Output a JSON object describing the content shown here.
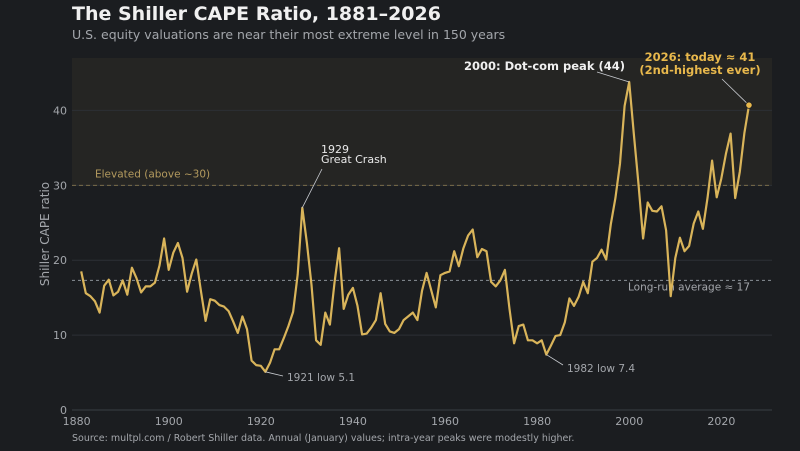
{
  "title": "The Shiller CAPE Ratio, 1881–2026",
  "subtitle": "U.S. equity valuations are near their most extreme level in 150 years",
  "source": "Source: multpl.com / Robert Shiller data. Annual (January) values; intra-year peaks were modestly higher.",
  "colors": {
    "background": "#1b1d20",
    "line": "#d9b45a",
    "elevated_band": "#252523",
    "grid": "#2c3035",
    "text_muted": "#a3a6ab",
    "accent_label": "#e8b84c"
  },
  "chart_data": {
    "type": "line",
    "xlabel": "",
    "ylabel": "Shiller CAPE ratio",
    "xlim": [
      1879,
      2031
    ],
    "ylim": [
      0,
      47
    ],
    "xticks": [
      1880,
      1900,
      1920,
      1940,
      1960,
      1980,
      2000,
      2020
    ],
    "yticks": [
      0,
      10,
      20,
      30,
      40
    ],
    "grid": "horizontal",
    "series": [
      {
        "x": [
          1881,
          1882,
          1883,
          1884,
          1885,
          1886,
          1887,
          1888,
          1889,
          1890,
          1891,
          1892,
          1893,
          1894,
          1895,
          1896,
          1897,
          1898,
          1899,
          1900,
          1901,
          1902,
          1903,
          1904,
          1905,
          1906,
          1907,
          1908,
          1909,
          1910,
          1911,
          1912,
          1913,
          1914,
          1915,
          1916,
          1917,
          1918,
          1919,
          1920,
          1921,
          1922,
          1923,
          1924,
          1925,
          1926,
          1927,
          1928,
          1929,
          1930,
          1931,
          1932,
          1933,
          1934,
          1935,
          1936,
          1937,
          1938,
          1939,
          1940,
          1941,
          1942,
          1943,
          1944,
          1945,
          1946,
          1947,
          1948,
          1949,
          1950,
          1951,
          1952,
          1953,
          1954,
          1955,
          1956,
          1957,
          1958,
          1959,
          1960,
          1961,
          1962,
          1963,
          1964,
          1965,
          1966,
          1967,
          1968,
          1969,
          1970,
          1971,
          1972,
          1973,
          1974,
          1975,
          1976,
          1977,
          1978,
          1979,
          1980,
          1981,
          1982,
          1983,
          1984,
          1985,
          1986,
          1987,
          1988,
          1989,
          1990,
          1991,
          1992,
          1993,
          1994,
          1995,
          1996,
          1997,
          1998,
          1999,
          2000,
          2001,
          2002,
          2003,
          2004,
          2005,
          2006,
          2007,
          2008,
          2009,
          2010,
          2011,
          2012,
          2013,
          2014,
          2015,
          2016,
          2017,
          2018,
          2019,
          2020,
          2021,
          2022,
          2023,
          2024,
          2025,
          2026
        ],
        "values": [
          18.5,
          15.6,
          15.2,
          14.5,
          13.0,
          16.6,
          17.4,
          15.3,
          15.8,
          17.3,
          15.4,
          19.0,
          17.6,
          15.7,
          16.5,
          16.5,
          17.0,
          19.3,
          22.9,
          18.7,
          21.0,
          22.3,
          20.3,
          15.8,
          18.2,
          20.1,
          15.9,
          11.9,
          14.8,
          14.6,
          14.0,
          13.8,
          13.2,
          11.8,
          10.3,
          12.5,
          10.8,
          6.6,
          6.0,
          5.9,
          5.1,
          6.3,
          8.1,
          8.1,
          9.6,
          11.2,
          13.1,
          18.1,
          27.0,
          22.3,
          16.7,
          9.3,
          8.7,
          13.0,
          11.4,
          17.0,
          21.6,
          13.5,
          15.4,
          16.3,
          13.9,
          10.1,
          10.2,
          11.0,
          12.0,
          15.6,
          11.5,
          10.5,
          10.3,
          10.8,
          12.0,
          12.5,
          13.0,
          12.0,
          15.9,
          18.3,
          16.0,
          13.7,
          18.0,
          18.3,
          18.5,
          21.2,
          19.2,
          21.6,
          23.3,
          24.1,
          20.4,
          21.5,
          21.2,
          17.1,
          16.5,
          17.3,
          18.7,
          13.5,
          8.9,
          11.2,
          11.4,
          9.3,
          9.3,
          8.9,
          9.3,
          7.4,
          8.6,
          9.9,
          10.0,
          11.7,
          14.9,
          13.9,
          15.1,
          17.1,
          15.6,
          19.8,
          20.3,
          21.4,
          20.1,
          24.8,
          28.3,
          32.9,
          40.6,
          43.8,
          36.9,
          30.3,
          22.9,
          27.7,
          26.6,
          26.5,
          27.2,
          24.0,
          15.2,
          20.3,
          23.0,
          21.2,
          21.9,
          24.9,
          26.5,
          24.2,
          28.3,
          33.3,
          28.4,
          30.9,
          34.2,
          36.9,
          28.3,
          31.8,
          37.0,
          40.7
        ]
      }
    ],
    "reference_lines": [
      {
        "y": 30,
        "label": "Elevated  (above ~30)"
      },
      {
        "y": 17.3,
        "label": "Long-run average ≈ 17"
      }
    ],
    "annotations": [
      {
        "x": 1929,
        "y": 27.0,
        "lines": [
          "1929",
          "Great Crash"
        ]
      },
      {
        "x": 1921,
        "y": 5.1,
        "lines": [
          "1921 low  5.1"
        ]
      },
      {
        "x": 1982,
        "y": 7.4,
        "lines": [
          "1982 low  7.4"
        ]
      },
      {
        "x": 2000,
        "y": 43.8,
        "lines": [
          "2000: Dot-com peak (44)"
        ]
      },
      {
        "x": 2026,
        "y": 40.7,
        "lines": [
          "2026: today ≈ 41",
          "(2nd-highest ever)"
        ]
      }
    ]
  }
}
